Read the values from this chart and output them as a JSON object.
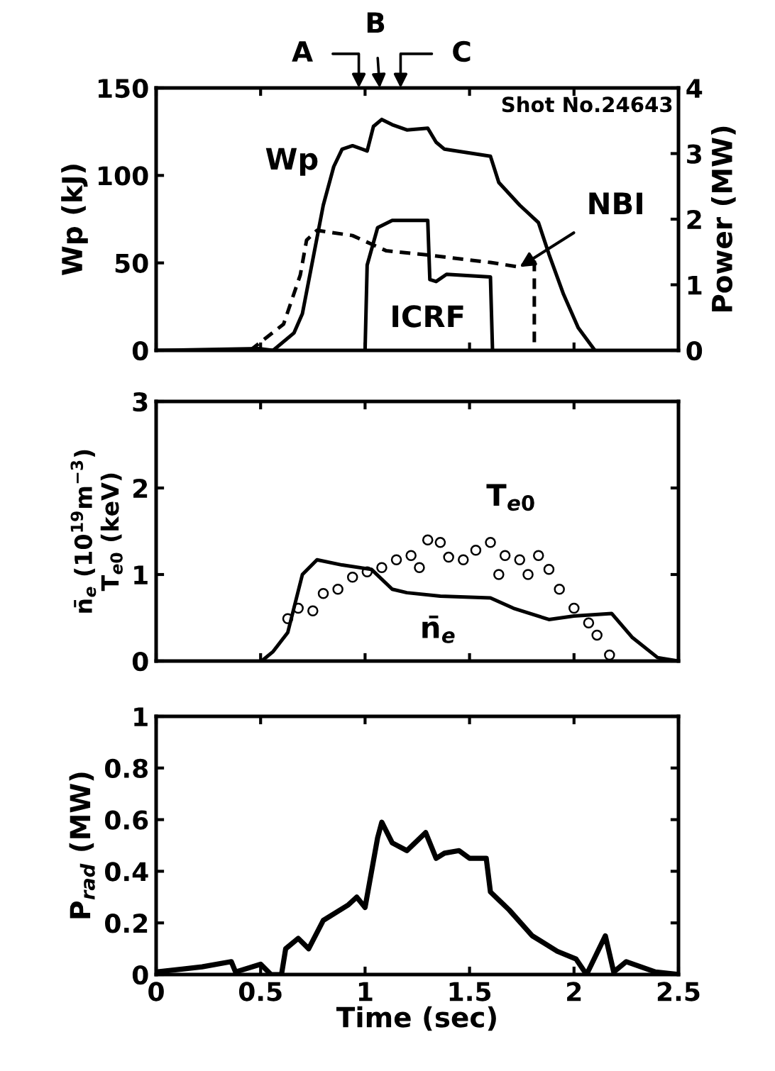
{
  "chart_data": [
    {
      "type": "line",
      "xlim": [
        0,
        2.5
      ],
      "xticks": [
        0,
        0.5,
        1,
        1.5,
        2,
        2.5
      ],
      "ylim": [
        0,
        150
      ],
      "yticks": [
        0,
        50,
        100,
        150
      ],
      "y2lim": [
        0,
        4
      ],
      "y2ticks": [
        0,
        1,
        2,
        3,
        4
      ],
      "ylabel": "Wp (kJ)",
      "y2label": "Power (MW)",
      "tick_labels": "y",
      "grid": false,
      "legend": false,
      "series": [
        {
          "name": "Wp",
          "color": "#000000",
          "line_style": "solid",
          "x": [
            0,
            0.49,
            0.56,
            0.66,
            0.7,
            0.75,
            0.8,
            0.85,
            0.89,
            0.94,
            1.01,
            1.04,
            1.08,
            1.13,
            1.2,
            1.3,
            1.34,
            1.38,
            1.6,
            1.64,
            1.74,
            1.83,
            1.88,
            1.95,
            2.02,
            2.1
          ],
          "values": [
            0,
            1,
            0,
            10,
            21,
            52,
            83,
            105,
            115,
            117,
            114,
            128,
            132,
            129,
            126,
            127,
            119,
            115,
            111,
            96,
            83,
            73,
            55,
            32,
            13,
            0
          ]
        },
        {
          "name": "NBI",
          "color": "#000000",
          "line_style": "dashed",
          "axis": "y2",
          "x": [
            0.45,
            0.49,
            0.61,
            0.69,
            0.72,
            0.77,
            0.94,
            1.1,
            1.31,
            1.6,
            1.74,
            1.81,
            1.81
          ],
          "values": [
            0,
            0.1,
            0.4,
            1.15,
            1.68,
            1.83,
            1.75,
            1.52,
            1.45,
            1.34,
            1.27,
            1.42,
            0
          ]
        },
        {
          "name": "ICRF",
          "color": "#000000",
          "line_style": "solid",
          "axis": "y2",
          "x": [
            1.0,
            1.01,
            1.06,
            1.13,
            1.3,
            1.31,
            1.34,
            1.39,
            1.6,
            1.61
          ],
          "values": [
            0,
            1.3,
            1.87,
            1.98,
            1.98,
            1.08,
            1.05,
            1.16,
            1.12,
            0
          ]
        }
      ],
      "annotations": [
        "Shot No.24643",
        "A",
        "B",
        "C"
      ]
    },
    {
      "type": "line",
      "xlim": [
        0,
        2.5
      ],
      "xticks": [
        0,
        0.5,
        1,
        1.5,
        2,
        2.5
      ],
      "ylim": [
        0,
        3
      ],
      "yticks": [
        0,
        1,
        2,
        3
      ],
      "ylabel": "n̄$_{e}$ (10$^{19}$m$^{−3}$)\nT$_{e0}$ (keV)",
      "tick_labels": "y",
      "grid": false,
      "legend": false,
      "series": [
        {
          "name": "n̄$_{e}$",
          "color": "#000000",
          "x": [
            0.505,
            0.56,
            0.63,
            0.7,
            0.77,
            0.89,
            1.03,
            1.13,
            1.2,
            1.36,
            1.6,
            1.71,
            1.88,
            2.0,
            2.18,
            2.28,
            2.4,
            2.5
          ],
          "values": [
            0,
            0.11,
            0.33,
            1.0,
            1.17,
            1.11,
            1.06,
            0.83,
            0.79,
            0.75,
            0.73,
            0.61,
            0.48,
            0.52,
            0.55,
            0.27,
            0.04,
            0
          ]
        },
        {
          "name": "T$_{e0}$",
          "type": "scatter",
          "marker": "circle",
          "color": "#000000",
          "x": [
            0.63,
            0.68,
            0.75,
            0.8,
            0.87,
            0.94,
            1.01,
            1.08,
            1.15,
            1.22,
            1.26,
            1.3,
            1.36,
            1.4,
            1.47,
            1.53,
            1.6,
            1.64,
            1.67,
            1.74,
            1.78,
            1.83,
            1.88,
            1.93,
            2.0,
            2.07,
            2.11,
            2.17
          ],
          "values": [
            0.49,
            0.61,
            0.58,
            0.78,
            0.83,
            0.97,
            1.03,
            1.08,
            1.17,
            1.22,
            1.08,
            1.4,
            1.37,
            1.2,
            1.17,
            1.28,
            1.37,
            1.0,
            1.22,
            1.17,
            1.0,
            1.22,
            1.06,
            0.83,
            0.61,
            0.44,
            0.3,
            0.07
          ]
        }
      ]
    },
    {
      "type": "line",
      "xlim": [
        0,
        2.5
      ],
      "xticks": [
        0,
        0.5,
        1,
        1.5,
        2,
        2.5
      ],
      "ylim": [
        0,
        1
      ],
      "yticks": [
        0,
        0.2,
        0.4,
        0.6,
        0.8,
        1
      ],
      "xlabel": "Time (sec)",
      "ylabel": "P$_{rad}$ (MW)",
      "grid": false,
      "legend": false,
      "series": [
        {
          "color": "#000000",
          "x": [
            0,
            0.22,
            0.36,
            0.38,
            0.5,
            0.55,
            0.6,
            0.62,
            0.68,
            0.73,
            0.8,
            0.92,
            0.96,
            1.0,
            1.06,
            1.08,
            1.13,
            1.2,
            1.29,
            1.34,
            1.38,
            1.45,
            1.5,
            1.58,
            1.6,
            1.69,
            1.8,
            1.92,
            2.01,
            2.06,
            2.15,
            2.19,
            2.25,
            2.39,
            2.5
          ],
          "values": [
            0.01,
            0.03,
            0.05,
            0.01,
            0.04,
            0,
            0,
            0.1,
            0.14,
            0.1,
            0.21,
            0.27,
            0.3,
            0.26,
            0.53,
            0.59,
            0.51,
            0.48,
            0.55,
            0.45,
            0.47,
            0.48,
            0.45,
            0.45,
            0.32,
            0.25,
            0.15,
            0.09,
            0.06,
            0,
            0.15,
            0.01,
            0.05,
            0.01,
            0
          ]
        }
      ]
    }
  ]
}
